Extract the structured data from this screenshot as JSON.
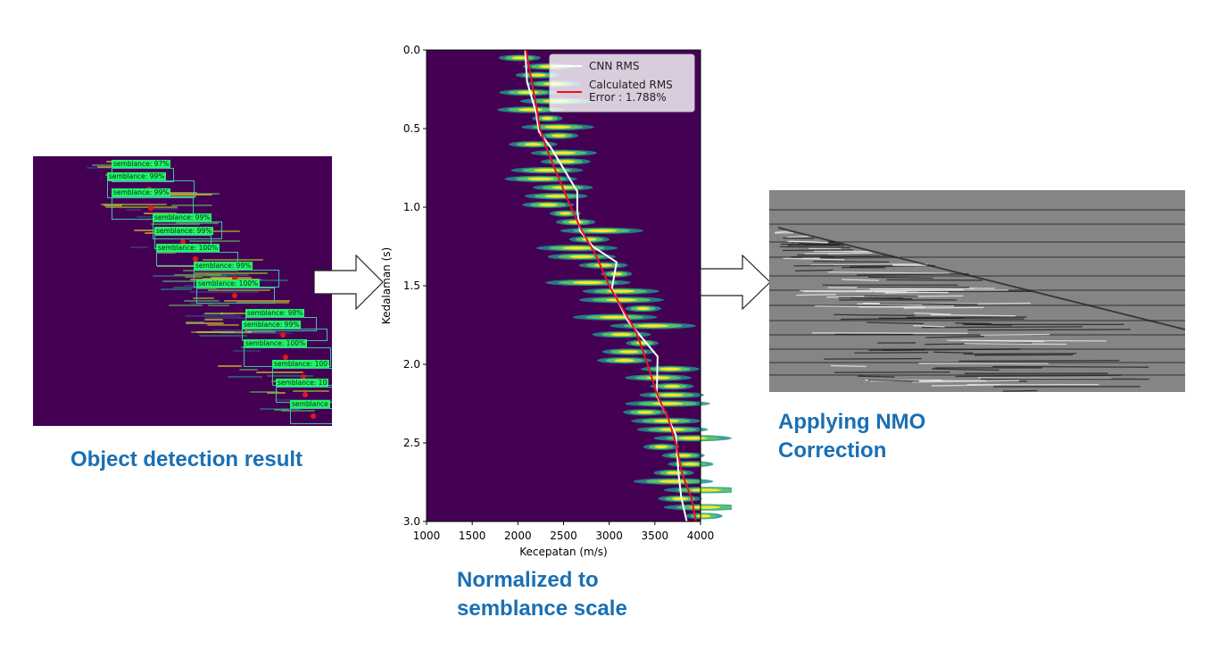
{
  "captions": {
    "left": "Object detection result",
    "middle_line1": "Normalized to",
    "middle_line2": "semblance scale",
    "right_line1": "Applying NMO",
    "right_line2": "Correction"
  },
  "detections": [
    {
      "label": "semblance: 97%"
    },
    {
      "label": "semblance: 99%"
    },
    {
      "label": "semblance: 99%"
    },
    {
      "label": "semblance: 99%"
    },
    {
      "label": "semblance: 99%"
    },
    {
      "label": "semblance: 100%"
    },
    {
      "label": "semblance: 99%"
    },
    {
      "label": "semblance: 100%"
    },
    {
      "label": "semblance: 98%"
    },
    {
      "label": "semblance: 99%"
    },
    {
      "label": "semblance: 100%"
    },
    {
      "label": "semblance: 100"
    },
    {
      "label": "semblance: 10"
    },
    {
      "label": "semblance"
    }
  ],
  "chart_data": {
    "type": "line",
    "title": "",
    "xlabel": "Kecepatan (m/s)",
    "ylabel": "Kedalaman (s)",
    "xlim": [
      1000,
      4000
    ],
    "ylim": [
      3.0,
      0.0
    ],
    "x_ticks": [
      "1000",
      "1500",
      "2000",
      "2500",
      "3000",
      "3500",
      "4000"
    ],
    "y_ticks": [
      "0.0",
      "0.5",
      "1.0",
      "1.5",
      "2.0",
      "2.5",
      "3.0"
    ],
    "background": "semblance heatmap (viridis)",
    "legend_position": "top-right",
    "legend": [
      "CNN RMS",
      "Calculated RMS\nError : 1.788%"
    ],
    "series": [
      {
        "name": "CNN RMS",
        "color": "#ffffff",
        "points": [
          [
            2080,
            0.0
          ],
          [
            2100,
            0.2
          ],
          [
            2200,
            0.4
          ],
          [
            2230,
            0.52
          ],
          [
            2360,
            0.62
          ],
          [
            2650,
            0.9
          ],
          [
            2650,
            1.02
          ],
          [
            2680,
            1.15
          ],
          [
            2820,
            1.25
          ],
          [
            3080,
            1.35
          ],
          [
            3030,
            1.52
          ],
          [
            3200,
            1.72
          ],
          [
            3530,
            1.95
          ],
          [
            3520,
            2.2
          ],
          [
            3650,
            2.35
          ],
          [
            3730,
            2.45
          ],
          [
            3760,
            2.7
          ],
          [
            3790,
            2.85
          ],
          [
            3850,
            3.0
          ]
        ]
      },
      {
        "name": "Calculated RMS",
        "color": "#e8141c",
        "points": [
          [
            2090,
            0.0
          ],
          [
            2150,
            0.2
          ],
          [
            2200,
            0.35
          ],
          [
            2240,
            0.5
          ],
          [
            2330,
            0.65
          ],
          [
            2450,
            0.82
          ],
          [
            2580,
            1.0
          ],
          [
            2700,
            1.15
          ],
          [
            2850,
            1.3
          ],
          [
            3000,
            1.5
          ],
          [
            3150,
            1.65
          ],
          [
            3300,
            1.8
          ],
          [
            3420,
            2.0
          ],
          [
            3530,
            2.2
          ],
          [
            3650,
            2.35
          ],
          [
            3730,
            2.5
          ],
          [
            3800,
            2.7
          ],
          [
            3900,
            2.85
          ],
          [
            3950,
            3.0
          ]
        ]
      }
    ]
  },
  "colors": {
    "caption": "#1a6fb3",
    "heatmap_bg": "#440154",
    "detection_label": "#22f36a",
    "detection_box": "#3fbfa8",
    "marker": "#e8141c"
  }
}
